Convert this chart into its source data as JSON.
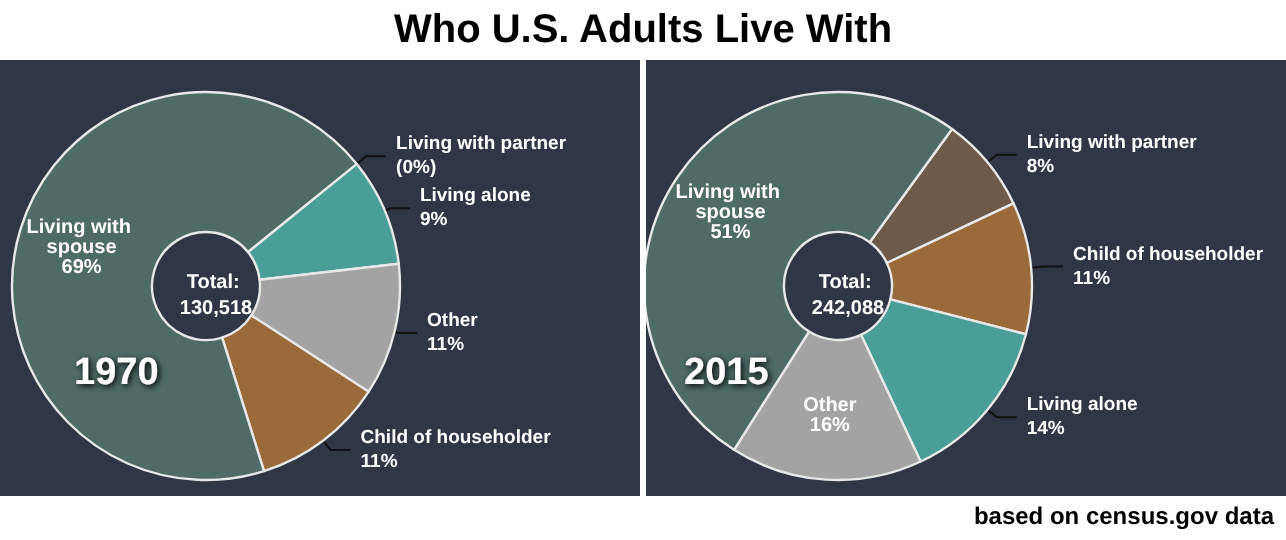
{
  "chart_data": [
    {
      "type": "donut",
      "title": "Who U.S. Adults Live With",
      "subtitle": "1970",
      "annotations": [
        "Total: 130,518"
      ],
      "categories": [
        "Living with partner",
        "Living alone",
        "Other",
        "Child of householder",
        "Living with spouse"
      ],
      "values": [
        0,
        9,
        11,
        11,
        69
      ],
      "value_labels": [
        "(0%)",
        "9%",
        "11%",
        "11%",
        "69%"
      ],
      "colors": [
        "#8a6a50",
        "#4a9e98",
        "#a3a3a3",
        "#9a6a3a",
        "#4e6b68"
      ]
    },
    {
      "type": "donut",
      "subtitle": "2015",
      "annotations": [
        "Total: 242,088",
        "based on census.gov data"
      ],
      "categories": [
        "Living with partner",
        "Child of householder",
        "Living alone",
        "Other",
        "Living with spouse"
      ],
      "values": [
        8,
        11,
        14,
        16,
        51
      ],
      "value_labels": [
        "8%",
        "11%",
        "14%",
        "16%",
        "51%"
      ],
      "colors": [
        "#6e5a48",
        "#9a6a3a",
        "#4a9e98",
        "#a3a3a3",
        "#4e6b68"
      ]
    }
  ]
}
